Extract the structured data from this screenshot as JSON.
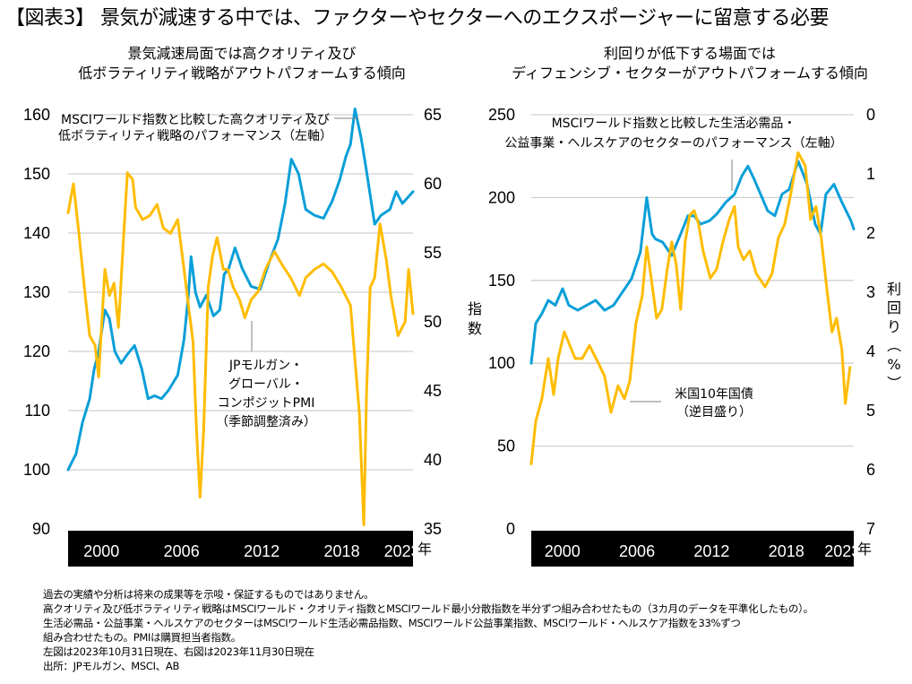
{
  "header": {
    "title": "【図表3】 景気が減速する中では、ファクターやセクターへのエクスポージャーに留意する必要"
  },
  "colors": {
    "blue": "#0A9FD8",
    "orange": "#FFBC00",
    "grid": "#D0D0D0",
    "axis_bar": "#000000"
  },
  "chart_data": [
    {
      "type": "line",
      "title_lines": [
        "景気減速局面では高クオリティ及び",
        "低ボラティリティ戦略がアウトパフォームする傾向"
      ],
      "xlabel": "年",
      "x_tick_labels": [
        "2000",
        "2006",
        "2012",
        "2018",
        "2023"
      ],
      "x_ticks": [
        2000.5,
        2006.5,
        2012.5,
        2018.5,
        2023.0
      ],
      "xlim": [
        1998.0,
        2023.83
      ],
      "left_axis": {
        "label": "",
        "ylim": [
          90,
          160
        ],
        "ticks": [
          90,
          100,
          110,
          120,
          130,
          140,
          150,
          160
        ]
      },
      "right_axis": {
        "label": "",
        "ylim": [
          35,
          65
        ],
        "ticks": [
          35,
          40,
          45,
          50,
          55,
          60,
          65
        ]
      },
      "grid": true,
      "annotations": [
        {
          "lines": [
            "MSCIワールド指数と比較した高クオリティ及び",
            "低ボラティリティ戦略のパフォーマンス（左軸）"
          ],
          "series": "quality_lowvol"
        },
        {
          "lines": [
            "JPモルガン・",
            "グローバル・",
            "コンポジットPMI",
            "（季節調整済み）"
          ],
          "series": "pmi"
        }
      ],
      "series": [
        {
          "name": "MSCIワールド指数と比較した高クオリティ及び低ボラティリティ戦略のパフォーマンス（左軸）",
          "key": "quality_lowvol",
          "axis": "left",
          "color": "blue",
          "x": [
            1998.0,
            1998.6,
            1999.08,
            1999.62,
            1999.95,
            2000.29,
            2000.76,
            2001.1,
            2001.5,
            2001.97,
            2002.44,
            2002.98,
            2003.52,
            2003.99,
            2004.46,
            2005.0,
            2005.54,
            2006.21,
            2006.68,
            2007.01,
            2007.21,
            2007.54,
            2007.88,
            2008.35,
            2008.89,
            2009.36,
            2009.69,
            2010.03,
            2010.5,
            2011.04,
            2011.71,
            2012.38,
            2013.05,
            2013.72,
            2014.25,
            2014.72,
            2015.26,
            2015.79,
            2016.46,
            2017.13,
            2017.8,
            2018.34,
            2018.81,
            2019.15,
            2019.48,
            2019.95,
            2020.35,
            2020.96,
            2021.43,
            2022.1,
            2022.57,
            2023.04,
            2023.83
          ],
          "values": [
            100,
            102.7,
            108,
            112,
            117,
            120,
            127,
            125.5,
            120,
            118,
            119.5,
            121,
            117,
            112,
            112.5,
            112,
            113.5,
            116,
            122,
            129.5,
            136,
            130,
            127.5,
            129.5,
            126,
            127,
            133,
            134,
            137.5,
            134,
            131,
            130.5,
            135,
            139,
            145,
            152.5,
            150,
            144,
            143,
            142.5,
            145.5,
            149,
            153,
            155,
            161,
            156,
            150.5,
            141.5,
            143,
            144,
            147,
            145,
            147
          ]
        },
        {
          "name": "JPモルガン・グローバル・コンポジットPMI（季節調整済み）",
          "key": "pmi",
          "axis": "right",
          "color": "orange",
          "x": [
            1998.0,
            1998.4,
            1998.81,
            1999.28,
            1999.62,
            2000.02,
            2000.29,
            2000.76,
            2001.1,
            2001.44,
            2001.77,
            2002.17,
            2002.44,
            2002.84,
            2003.05,
            2003.58,
            2004.12,
            2004.66,
            2005.13,
            2005.67,
            2006.21,
            2006.68,
            2007.01,
            2007.35,
            2007.62,
            2007.88,
            2008.15,
            2008.49,
            2008.82,
            2009.16,
            2009.63,
            2009.96,
            2010.37,
            2010.84,
            2011.24,
            2011.71,
            2012.24,
            2012.78,
            2013.45,
            2013.99,
            2014.66,
            2015.33,
            2015.8,
            2016.46,
            2017.13,
            2017.8,
            2018.47,
            2019.15,
            2019.81,
            2020.15,
            2020.35,
            2020.62,
            2020.96,
            2021.36,
            2021.83,
            2022.17,
            2022.7,
            2023.24,
            2023.5,
            2023.83
          ],
          "values": [
            57.9,
            60,
            56.4,
            51.9,
            49,
            48.3,
            46,
            53.8,
            51.9,
            52.8,
            49.6,
            56.4,
            60.8,
            60.3,
            58.3,
            57.4,
            57.7,
            58.5,
            56.8,
            56.4,
            57.4,
            53.8,
            51.2,
            48.6,
            42.1,
            37.3,
            42.1,
            52.5,
            54.8,
            56.1,
            53.8,
            53.8,
            52.5,
            51.6,
            50.3,
            51.6,
            52.2,
            53.8,
            55.1,
            54.2,
            53.2,
            51.9,
            53.2,
            53.8,
            54.2,
            53.6,
            52.5,
            51.2,
            43.4,
            35.3,
            44.7,
            52.5,
            53.2,
            57.1,
            54.5,
            51.9,
            49,
            50,
            53.8,
            50.6
          ]
        }
      ]
    },
    {
      "type": "line",
      "title_lines": [
        "利回りが低下する場面では",
        "ディフェンシブ・セクターがアウトパフォームする傾向"
      ],
      "xlabel": "年",
      "x_tick_labels": [
        "2000",
        "2006",
        "2012",
        "2018",
        "2023"
      ],
      "x_ticks": [
        2000.5,
        2006.5,
        2012.5,
        2018.5,
        2023.0
      ],
      "xlim": [
        1998.0,
        2023.92
      ],
      "left_axis": {
        "label": "指数",
        "ylim": [
          0,
          250
        ],
        "ticks": [
          0,
          50,
          100,
          150,
          200,
          250
        ]
      },
      "right_axis": {
        "label": "利回り（%）",
        "ylim": [
          7,
          0
        ],
        "inverted": true,
        "ticks": [
          0,
          1,
          2,
          3,
          4,
          5,
          6,
          7
        ]
      },
      "grid": true,
      "annotations": [
        {
          "lines": [
            "MSCIワールド指数と比較した生活必需品・",
            "公益事業・ヘルスケアのセクターのパフォーマンス（左軸）"
          ],
          "series": "defensive"
        },
        {
          "lines": [
            "米国10年国債",
            "（逆目盛り）"
          ],
          "series": "ust10y"
        }
      ],
      "series": [
        {
          "name": "MSCIワールド指数と比較した生活必需品・公益事業・ヘルスケアのセクターのパフォーマンス（左軸）",
          "key": "defensive",
          "axis": "left",
          "color": "blue",
          "x": [
            1998.0,
            1998.36,
            1998.86,
            1999.37,
            1999.94,
            2000.52,
            2001.02,
            2001.74,
            2002.46,
            2003.18,
            2003.9,
            2004.62,
            2005.34,
            2006.06,
            2006.77,
            2007.28,
            2007.71,
            2007.99,
            2008.57,
            2009.29,
            2010.01,
            2010.59,
            2011.09,
            2011.6,
            2012.32,
            2012.9,
            2013.62,
            2014.34,
            2014.92,
            2015.42,
            2015.92,
            2016.43,
            2017.0,
            2017.58,
            2018.15,
            2018.73,
            2019.45,
            2020.17,
            2020.82,
            2021.25,
            2021.68,
            2022.33,
            2022.98,
            2023.7,
            2024.06,
            2024.27,
            2024.49
          ],
          "values": [
            100,
            124,
            130,
            138,
            135,
            145,
            135,
            132,
            135,
            138,
            132,
            135,
            143,
            151,
            167,
            200,
            178,
            175,
            173,
            165,
            178,
            189,
            189,
            184,
            186,
            190,
            197,
            202,
            213,
            219,
            211,
            202,
            192,
            189,
            202,
            205,
            222,
            208,
            184,
            178,
            202,
            208,
            197,
            186,
            181,
            181,
            181
          ]
        },
        {
          "name": "米国10年国債（逆目盛り）",
          "key": "ust10y",
          "axis": "right",
          "color": "orange",
          "x": [
            1998.0,
            1998.36,
            1998.86,
            1999.37,
            1999.8,
            2000.16,
            2000.66,
            2001.1,
            2001.53,
            2002.1,
            2002.68,
            2003.4,
            2003.9,
            2004.41,
            2004.98,
            2005.49,
            2005.92,
            2006.42,
            2006.92,
            2007.28,
            2007.64,
            2008.07,
            2008.5,
            2008.93,
            2009.29,
            2009.65,
            2010.01,
            2010.37,
            2010.73,
            2011.09,
            2011.45,
            2011.81,
            2012.39,
            2012.9,
            2013.4,
            2013.91,
            2014.34,
            2014.63,
            2015.06,
            2015.56,
            2016.07,
            2016.79,
            2017.36,
            2017.86,
            2018.37,
            2018.87,
            2019.45,
            2020.02,
            2020.45,
            2020.88,
            2021.31,
            2021.74,
            2022.17,
            2022.53,
            2022.96,
            2023.24,
            2023.62
          ],
          "values": [
            5.9,
            5.18,
            4.8,
            4.12,
            4.73,
            4.12,
            3.67,
            3.9,
            4.12,
            4.12,
            3.9,
            4.2,
            4.42,
            5.03,
            4.58,
            4.8,
            4.5,
            3.52,
            3.06,
            2.23,
            2.76,
            3.44,
            3.29,
            2.61,
            2.15,
            2.53,
            3.29,
            2.15,
            1.7,
            1.62,
            1.85,
            2.3,
            2.76,
            2.61,
            2.15,
            1.77,
            1.55,
            2.23,
            2.45,
            2.3,
            2.68,
            2.91,
            2.68,
            2.08,
            1.85,
            1.32,
            0.64,
            0.86,
            1.77,
            1.55,
            2.08,
            2.91,
            3.67,
            3.44,
            3.97,
            4.88,
            4.27
          ]
        }
      ]
    }
  ],
  "footnotes": [
    "過去の実績や分析は将来の成果等を示唆・保証するものではありません。",
    "高クオリティ及び低ボラティリティ戦略はMSCIワールド・クオリティ指数とMSCIワールド最小分散指数を半分ずつ組み合わせたもの（3カ月のデータを平準化したもの）。",
    "生活必需品・公益事業・ヘルスケアのセクターはMSCIワールド生活必需品指数、MSCIワールド公益事業指数、MSCIワールド・ヘルスケア指数を33%ずつ",
    "組み合わせたもの。PMIは購買担当者指数。",
    "左図は2023年10月31日現在、右図は2023年11月30日現在",
    "出所：JPモルガン、MSCI、AB"
  ]
}
